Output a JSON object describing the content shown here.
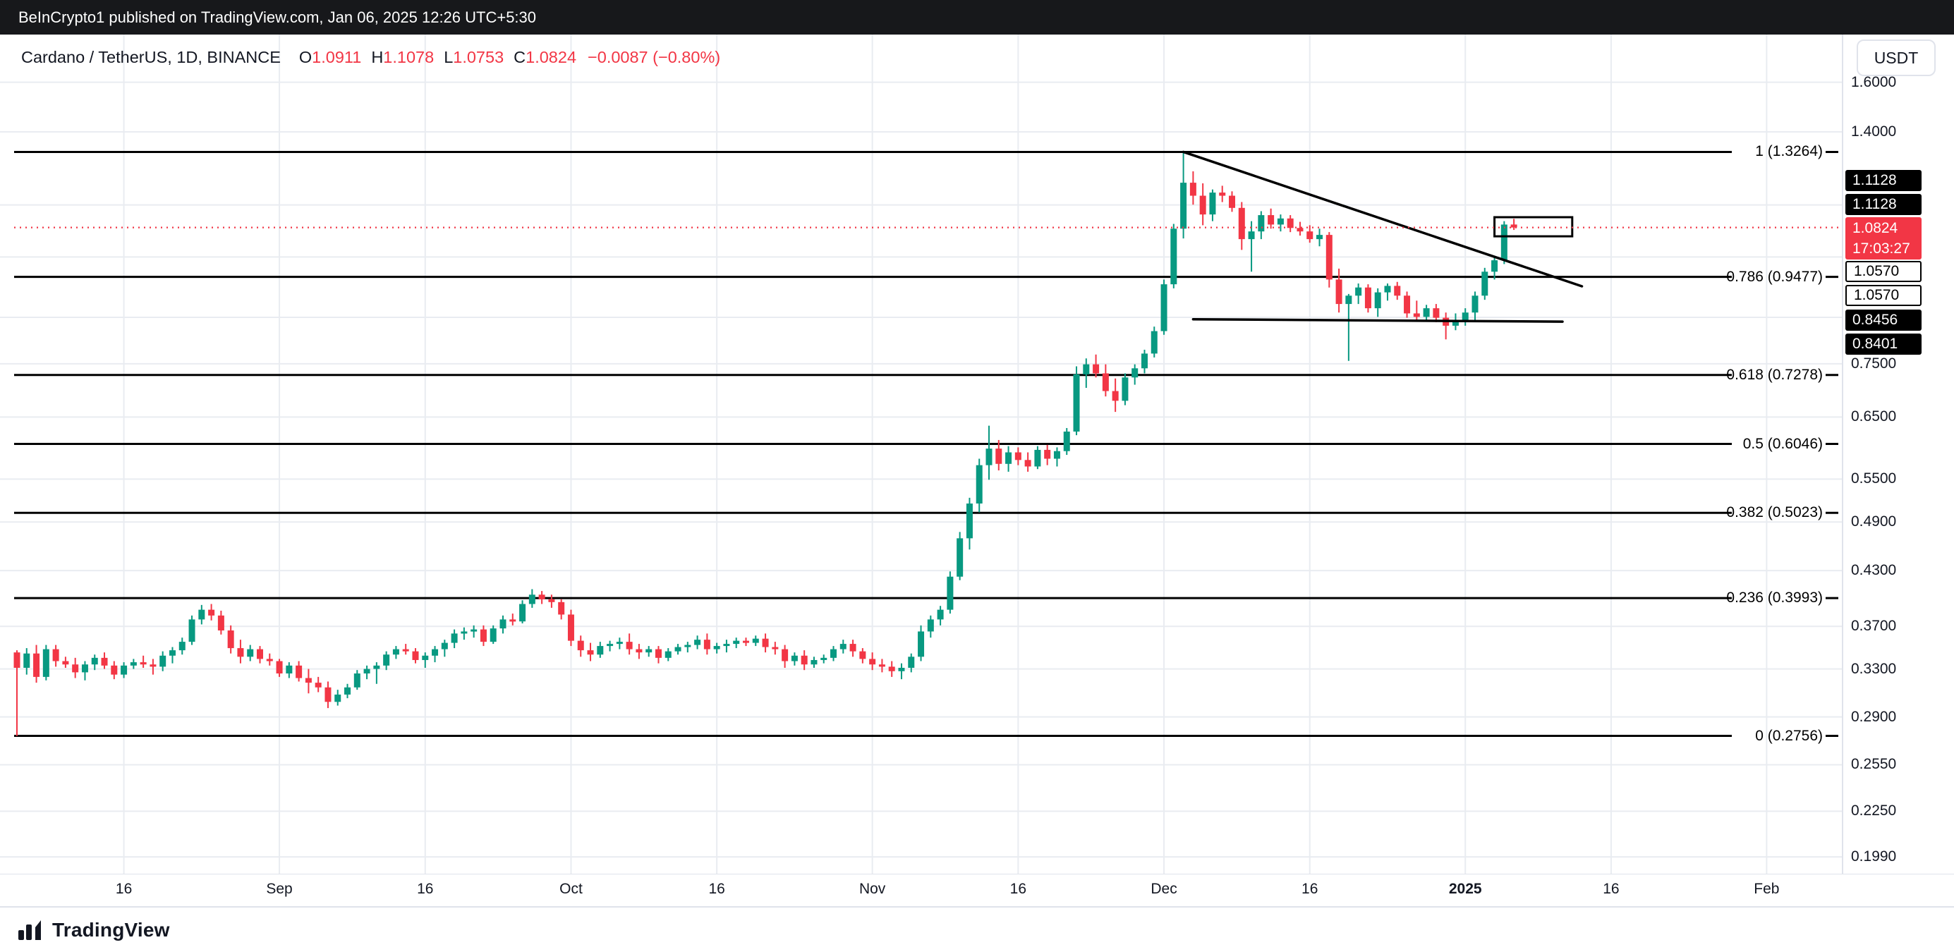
{
  "publish_bar": {
    "text": "BeInCrypto1 published on TradingView.com, Jan 06, 2025 12:26 UTC+5:30"
  },
  "header": {
    "symbol": "Cardano / TetherUS, 1D, BINANCE",
    "ohlc": [
      {
        "k": "O",
        "v": "1.0911"
      },
      {
        "k": "H",
        "v": "1.1078"
      },
      {
        "k": "L",
        "v": "1.0753"
      },
      {
        "k": "C",
        "v": "1.0824"
      }
    ],
    "change": "−0.0087 (−0.80%)",
    "currency_button": "USDT"
  },
  "price_axis": {
    "ticks": [
      {
        "label": "1.6000",
        "value": 1.6
      },
      {
        "label": "1.4000",
        "value": 1.4
      },
      {
        "label": "",
        "value": 1.15
      },
      {
        "label": "",
        "value": 1.0
      },
      {
        "label": "",
        "value": 0.85
      },
      {
        "label": "0.7500",
        "value": 0.75
      },
      {
        "label": "0.6500",
        "value": 0.65
      },
      {
        "label": "0.5500",
        "value": 0.55
      },
      {
        "label": "0.4900",
        "value": 0.49
      },
      {
        "label": "0.4300",
        "value": 0.43
      },
      {
        "label": "0.3700",
        "value": 0.37
      },
      {
        "label": "0.3300",
        "value": 0.33
      },
      {
        "label": "0.2900",
        "value": 0.29
      },
      {
        "label": "0.2550",
        "value": 0.255
      },
      {
        "label": "0.2250",
        "value": 0.225
      },
      {
        "label": "0.1990",
        "value": 0.199
      }
    ],
    "labels": [
      {
        "text": "1.1128",
        "type": "black"
      },
      {
        "text": "1.1128",
        "type": "black"
      },
      {
        "text": "1.0824",
        "type": "red",
        "countdown": "17:03:27"
      },
      {
        "text": "1.0570",
        "type": "white"
      },
      {
        "text": "1.0570",
        "type": "white"
      },
      {
        "text": "0.8456",
        "type": "black"
      },
      {
        "text": "0.8401",
        "type": "black"
      }
    ]
  },
  "time_axis": {
    "labels": [
      {
        "label": "16",
        "index": 11
      },
      {
        "label": "Sep",
        "index": 27
      },
      {
        "label": "16",
        "index": 42
      },
      {
        "label": "Oct",
        "index": 57
      },
      {
        "label": "16",
        "index": 72
      },
      {
        "label": "Nov",
        "index": 88
      },
      {
        "label": "16",
        "index": 103
      },
      {
        "label": "Dec",
        "index": 118
      },
      {
        "label": "16",
        "index": 133
      },
      {
        "label": "2025",
        "index": 149,
        "bold": true
      },
      {
        "label": "16",
        "index": 164
      },
      {
        "label": "Feb",
        "index": 180
      }
    ]
  },
  "footer": {
    "brand": "TradingView"
  },
  "colors": {
    "up": "#089981",
    "down": "#F23645",
    "grid": "#e9ecf1",
    "axis_text": "#131722",
    "drawing": "#000000",
    "publish_bar_bg": "#17181b",
    "border": "#e0e3eb"
  },
  "chart_data": {
    "type": "candlestick",
    "title": "Cardano / TetherUS, 1D, BINANCE",
    "interval": "1D",
    "price_scale": "logarithmic",
    "start_date": "2024-08-05",
    "bars_per_day": 1,
    "current": {
      "open": 1.0911,
      "high": 1.1078,
      "low": 1.0753,
      "close": 1.0824,
      "change": "−0.0087",
      "change_pct": "−0.80%",
      "countdown": "17:03:27"
    },
    "price_line": 1.0824,
    "fib_levels": [
      {
        "label": "1 (1.3264)",
        "value": 1.3264
      },
      {
        "label": "0.786 (0.9477)",
        "value": 0.9477
      },
      {
        "label": "0.618 (0.7278)",
        "value": 0.7278
      },
      {
        "label": "0.5 (0.6046)",
        "value": 0.6046
      },
      {
        "label": "0.382 (0.5023)",
        "value": 0.5023
      },
      {
        "label": "0.236 (0.3993)",
        "value": 0.3993
      },
      {
        "label": "0 (0.2756)",
        "value": 0.2756
      }
    ],
    "drawings": [
      {
        "name": "descending-trendline",
        "type": "trendline",
        "from": {
          "index": 120,
          "price": 1.3264
        },
        "to": {
          "index": 161,
          "price": 0.924
        }
      },
      {
        "name": "support-line",
        "type": "trendline",
        "from": {
          "index": 121,
          "price": 0.8456
        },
        "to": {
          "index": 159,
          "price": 0.8401
        }
      },
      {
        "name": "resistance-box",
        "type": "rectangle",
        "from": {
          "index": 152,
          "price": 1.1128
        },
        "to": {
          "index": 160,
          "price": 1.057
        }
      }
    ],
    "candles": [
      [
        0.345,
        0.347,
        0.2756,
        0.331
      ],
      [
        0.331,
        0.349,
        0.325,
        0.344
      ],
      [
        0.344,
        0.352,
        0.318,
        0.323
      ],
      [
        0.323,
        0.352,
        0.32,
        0.348
      ],
      [
        0.348,
        0.352,
        0.332,
        0.337
      ],
      [
        0.337,
        0.341,
        0.331,
        0.334
      ],
      [
        0.334,
        0.34,
        0.322,
        0.327
      ],
      [
        0.327,
        0.337,
        0.32,
        0.334
      ],
      [
        0.334,
        0.343,
        0.329,
        0.34
      ],
      [
        0.34,
        0.345,
        0.33,
        0.333
      ],
      [
        0.333,
        0.337,
        0.321,
        0.325
      ],
      [
        0.325,
        0.336,
        0.322,
        0.333
      ],
      [
        0.333,
        0.339,
        0.33,
        0.336
      ],
      [
        0.336,
        0.342,
        0.331,
        0.334
      ],
      [
        0.334,
        0.339,
        0.325,
        0.332
      ],
      [
        0.332,
        0.346,
        0.328,
        0.342
      ],
      [
        0.342,
        0.35,
        0.335,
        0.347
      ],
      [
        0.347,
        0.359,
        0.343,
        0.355
      ],
      [
        0.355,
        0.381,
        0.352,
        0.377
      ],
      [
        0.377,
        0.392,
        0.372,
        0.387
      ],
      [
        0.387,
        0.393,
        0.376,
        0.381
      ],
      [
        0.381,
        0.386,
        0.362,
        0.366
      ],
      [
        0.366,
        0.371,
        0.344,
        0.349
      ],
      [
        0.349,
        0.357,
        0.335,
        0.341
      ],
      [
        0.341,
        0.352,
        0.337,
        0.348
      ],
      [
        0.348,
        0.351,
        0.335,
        0.339
      ],
      [
        0.339,
        0.344,
        0.333,
        0.337
      ],
      [
        0.337,
        0.339,
        0.323,
        0.326
      ],
      [
        0.326,
        0.336,
        0.322,
        0.333
      ],
      [
        0.333,
        0.337,
        0.319,
        0.322
      ],
      [
        0.322,
        0.33,
        0.309,
        0.318
      ],
      [
        0.318,
        0.323,
        0.31,
        0.314
      ],
      [
        0.314,
        0.319,
        0.297,
        0.302
      ],
      [
        0.302,
        0.312,
        0.299,
        0.308
      ],
      [
        0.308,
        0.317,
        0.305,
        0.314
      ],
      [
        0.314,
        0.329,
        0.312,
        0.326
      ],
      [
        0.326,
        0.333,
        0.321,
        0.33
      ],
      [
        0.33,
        0.336,
        0.317,
        0.333
      ],
      [
        0.333,
        0.346,
        0.329,
        0.343
      ],
      [
        0.343,
        0.351,
        0.339,
        0.348
      ],
      [
        0.348,
        0.353,
        0.343,
        0.346
      ],
      [
        0.346,
        0.349,
        0.335,
        0.338
      ],
      [
        0.338,
        0.345,
        0.331,
        0.342
      ],
      [
        0.342,
        0.351,
        0.336,
        0.348
      ],
      [
        0.348,
        0.357,
        0.341,
        0.354
      ],
      [
        0.354,
        0.367,
        0.349,
        0.363
      ],
      [
        0.363,
        0.369,
        0.357,
        0.365
      ],
      [
        0.365,
        0.371,
        0.359,
        0.367
      ],
      [
        0.367,
        0.371,
        0.351,
        0.355
      ],
      [
        0.355,
        0.371,
        0.353,
        0.368
      ],
      [
        0.368,
        0.381,
        0.363,
        0.377
      ],
      [
        0.377,
        0.383,
        0.371,
        0.375
      ],
      [
        0.375,
        0.397,
        0.373,
        0.393
      ],
      [
        0.393,
        0.409,
        0.389,
        0.403
      ],
      [
        0.403,
        0.407,
        0.393,
        0.398
      ],
      [
        0.398,
        0.403,
        0.389,
        0.395
      ],
      [
        0.395,
        0.398,
        0.377,
        0.382
      ],
      [
        0.382,
        0.387,
        0.351,
        0.356
      ],
      [
        0.356,
        0.361,
        0.341,
        0.347
      ],
      [
        0.347,
        0.354,
        0.337,
        0.343
      ],
      [
        0.343,
        0.355,
        0.34,
        0.351
      ],
      [
        0.351,
        0.356,
        0.346,
        0.353
      ],
      [
        0.353,
        0.359,
        0.348,
        0.355
      ],
      [
        0.355,
        0.363,
        0.343,
        0.348
      ],
      [
        0.348,
        0.353,
        0.339,
        0.345
      ],
      [
        0.345,
        0.351,
        0.341,
        0.348
      ],
      [
        0.348,
        0.351,
        0.335,
        0.34
      ],
      [
        0.34,
        0.349,
        0.337,
        0.346
      ],
      [
        0.346,
        0.353,
        0.343,
        0.35
      ],
      [
        0.35,
        0.355,
        0.345,
        0.352
      ],
      [
        0.352,
        0.361,
        0.348,
        0.357
      ],
      [
        0.357,
        0.363,
        0.343,
        0.348
      ],
      [
        0.348,
        0.354,
        0.344,
        0.351
      ],
      [
        0.351,
        0.357,
        0.345,
        0.353
      ],
      [
        0.353,
        0.359,
        0.349,
        0.356
      ],
      [
        0.356,
        0.359,
        0.351,
        0.354
      ],
      [
        0.354,
        0.361,
        0.351,
        0.358
      ],
      [
        0.358,
        0.363,
        0.345,
        0.35
      ],
      [
        0.35,
        0.355,
        0.343,
        0.348
      ],
      [
        0.348,
        0.352,
        0.331,
        0.337
      ],
      [
        0.337,
        0.345,
        0.333,
        0.342
      ],
      [
        0.342,
        0.347,
        0.329,
        0.334
      ],
      [
        0.334,
        0.341,
        0.331,
        0.338
      ],
      [
        0.338,
        0.343,
        0.335,
        0.34
      ],
      [
        0.34,
        0.351,
        0.337,
        0.348
      ],
      [
        0.348,
        0.357,
        0.344,
        0.353
      ],
      [
        0.353,
        0.357,
        0.341,
        0.346
      ],
      [
        0.346,
        0.349,
        0.335,
        0.339
      ],
      [
        0.339,
        0.345,
        0.329,
        0.334
      ],
      [
        0.334,
        0.339,
        0.327,
        0.332
      ],
      [
        0.332,
        0.337,
        0.323,
        0.328
      ],
      [
        0.328,
        0.335,
        0.321,
        0.331
      ],
      [
        0.331,
        0.344,
        0.327,
        0.341
      ],
      [
        0.341,
        0.371,
        0.337,
        0.365
      ],
      [
        0.365,
        0.381,
        0.359,
        0.377
      ],
      [
        0.377,
        0.391,
        0.371,
        0.387
      ],
      [
        0.387,
        0.429,
        0.383,
        0.423
      ],
      [
        0.423,
        0.477,
        0.419,
        0.469
      ],
      [
        0.469,
        0.523,
        0.455,
        0.515
      ],
      [
        0.515,
        0.581,
        0.503,
        0.571
      ],
      [
        0.571,
        0.635,
        0.549,
        0.597
      ],
      [
        0.597,
        0.611,
        0.563,
        0.573
      ],
      [
        0.573,
        0.601,
        0.561,
        0.591
      ],
      [
        0.591,
        0.599,
        0.571,
        0.579
      ],
      [
        0.579,
        0.591,
        0.561,
        0.569
      ],
      [
        0.569,
        0.601,
        0.565,
        0.595
      ],
      [
        0.595,
        0.603,
        0.571,
        0.581
      ],
      [
        0.581,
        0.599,
        0.569,
        0.593
      ],
      [
        0.593,
        0.631,
        0.587,
        0.625
      ],
      [
        0.625,
        0.745,
        0.619,
        0.729
      ],
      [
        0.729,
        0.761,
        0.703,
        0.749
      ],
      [
        0.749,
        0.769,
        0.723,
        0.731
      ],
      [
        0.731,
        0.749,
        0.687,
        0.697
      ],
      [
        0.697,
        0.721,
        0.659,
        0.679
      ],
      [
        0.679,
        0.731,
        0.671,
        0.723
      ],
      [
        0.723,
        0.749,
        0.709,
        0.741
      ],
      [
        0.741,
        0.779,
        0.731,
        0.771
      ],
      [
        0.771,
        0.829,
        0.763,
        0.819
      ],
      [
        0.819,
        0.941,
        0.811,
        0.929
      ],
      [
        0.929,
        1.093,
        0.919,
        1.079
      ],
      [
        1.079,
        1.3264,
        1.051,
        1.221
      ],
      [
        1.221,
        1.259,
        1.151,
        1.179
      ],
      [
        1.179,
        1.219,
        1.089,
        1.121
      ],
      [
        1.121,
        1.199,
        1.101,
        1.189
      ],
      [
        1.189,
        1.211,
        1.159,
        1.179
      ],
      [
        1.179,
        1.193,
        1.129,
        1.141
      ],
      [
        1.141,
        1.159,
        1.019,
        1.049
      ],
      [
        1.049,
        1.101,
        0.961,
        1.071
      ],
      [
        1.071,
        1.131,
        1.049,
        1.119
      ],
      [
        1.119,
        1.139,
        1.079,
        1.091
      ],
      [
        1.091,
        1.121,
        1.071,
        1.109
      ],
      [
        1.109,
        1.119,
        1.069,
        1.081
      ],
      [
        1.081,
        1.099,
        1.059,
        1.071
      ],
      [
        1.071,
        1.089,
        1.039,
        1.049
      ],
      [
        1.049,
        1.079,
        1.029,
        1.061
      ],
      [
        1.061,
        1.069,
        0.921,
        0.941
      ],
      [
        0.941,
        0.969,
        0.861,
        0.881
      ],
      [
        0.881,
        0.905,
        0.756,
        0.901
      ],
      [
        0.901,
        0.931,
        0.881,
        0.921
      ],
      [
        0.921,
        0.929,
        0.861,
        0.871
      ],
      [
        0.871,
        0.919,
        0.851,
        0.909
      ],
      [
        0.909,
        0.931,
        0.889,
        0.925
      ],
      [
        0.925,
        0.935,
        0.891,
        0.901
      ],
      [
        0.901,
        0.911,
        0.849,
        0.859
      ],
      [
        0.859,
        0.889,
        0.841,
        0.851
      ],
      [
        0.851,
        0.879,
        0.843,
        0.871
      ],
      [
        0.871,
        0.881,
        0.839,
        0.849
      ],
      [
        0.849,
        0.861,
        0.801,
        0.831
      ],
      [
        0.831,
        0.859,
        0.821,
        0.841
      ],
      [
        0.841,
        0.871,
        0.831,
        0.861
      ],
      [
        0.861,
        0.911,
        0.8401,
        0.901
      ],
      [
        0.901,
        0.971,
        0.891,
        0.961
      ],
      [
        0.961,
        1.001,
        0.941,
        0.991
      ],
      [
        0.991,
        1.101,
        0.981,
        1.091
      ],
      [
        1.0911,
        1.1078,
        1.0753,
        1.0824
      ]
    ]
  }
}
